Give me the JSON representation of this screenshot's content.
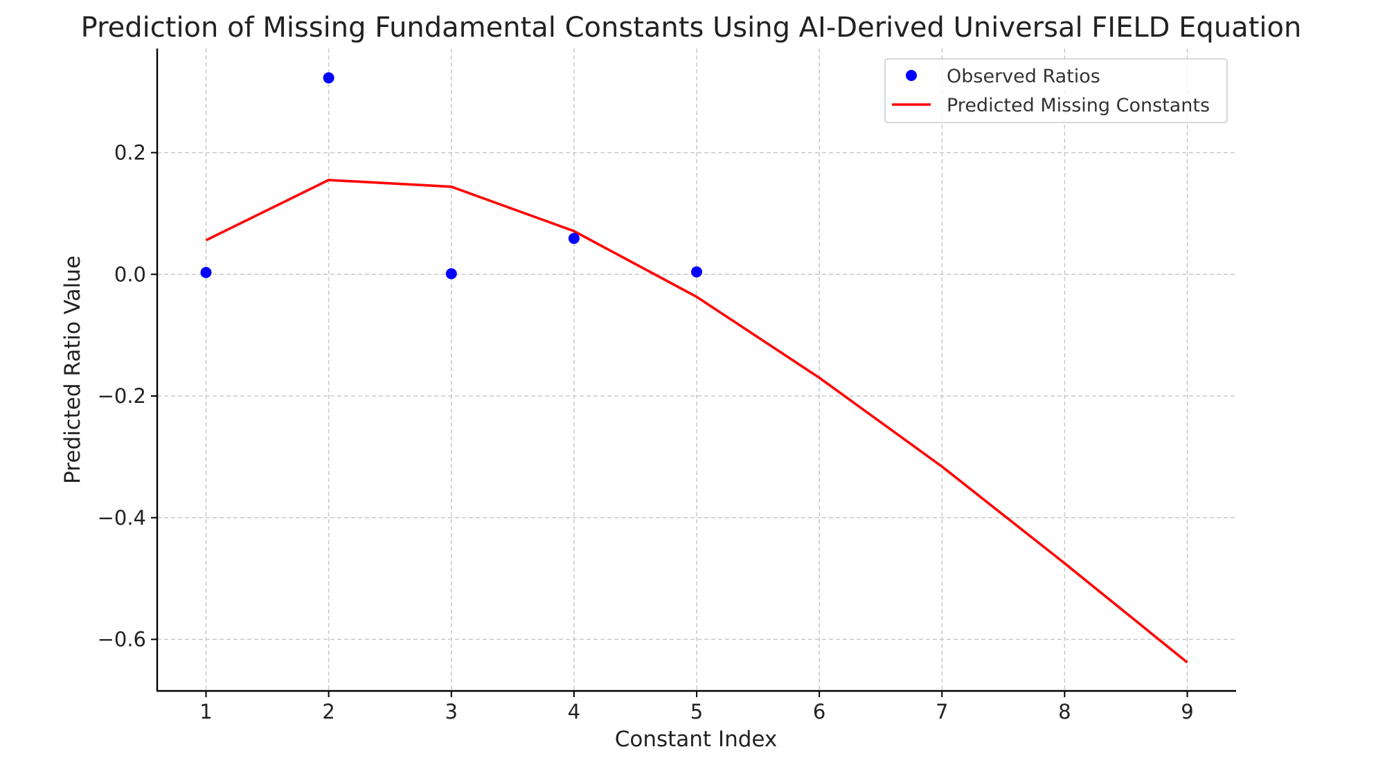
{
  "chart_data": {
    "type": "line",
    "title": "Prediction of Missing Fundamental Constants Using AI-Derived Universal FIELD Equation",
    "xlabel": "Constant Index",
    "ylabel": "Predicted Ratio Value",
    "xlim": [
      0.6,
      9.4
    ],
    "ylim": [
      -0.685,
      0.37
    ],
    "x_ticks": [
      1,
      2,
      3,
      4,
      5,
      6,
      7,
      8,
      9
    ],
    "x_tick_labels": [
      "1",
      "2",
      "3",
      "4",
      "5",
      "6",
      "7",
      "8",
      "9"
    ],
    "y_ticks": [
      -0.6,
      -0.4,
      -0.2,
      0.0,
      0.2
    ],
    "y_tick_labels": [
      "−0.6",
      "−0.4",
      "−0.2",
      "0.0",
      "0.2"
    ],
    "grid": true,
    "legend_position": "top-right",
    "series": [
      {
        "name": "Observed Ratios",
        "kind": "scatter",
        "color": "#0000ff",
        "x": [
          1,
          2,
          3,
          4,
          5
        ],
        "y": [
          0.003,
          0.323,
          0.001,
          0.059,
          0.004
        ]
      },
      {
        "name": "Predicted Missing Constants",
        "kind": "line",
        "color": "#ff0000",
        "x": [
          1,
          2,
          3,
          4,
          5,
          6,
          7,
          8,
          9
        ],
        "y": [
          0.056,
          0.155,
          0.144,
          0.071,
          -0.037,
          -0.17,
          -0.316,
          -0.475,
          -0.638
        ]
      }
    ]
  }
}
